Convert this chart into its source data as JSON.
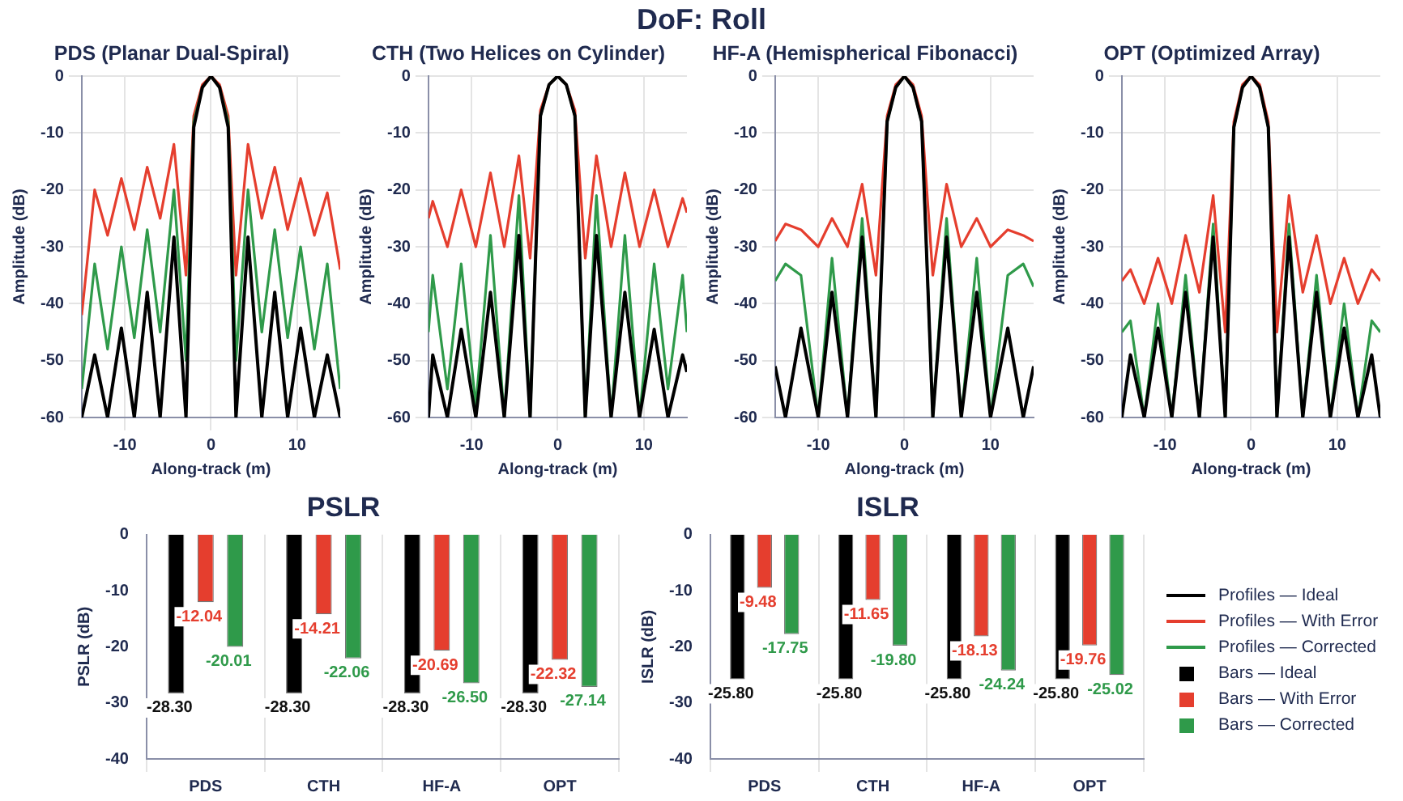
{
  "chart_data": [
    {
      "type": "other",
      "title": "DoF: Roll"
    },
    {
      "type": "line",
      "title": "PDS (Planar Dual-Spiral)",
      "xlabel": "Along-track (m)",
      "ylabel": "Amplitude (dB)",
      "xlim": [
        -15,
        15
      ],
      "xticks": [
        -10,
        0,
        10
      ],
      "ylim": [
        -60,
        0
      ],
      "yticks": [
        -60,
        -50,
        -40,
        -30,
        -20,
        -10,
        0
      ],
      "grid": true,
      "legend": "bottom right",
      "x": [
        -15,
        -13.5,
        -12,
        -10.4,
        -8.9,
        -7.4,
        -5.9,
        -4.3,
        -2.9,
        -2,
        -1,
        0,
        1,
        2,
        2.9,
        4.3,
        5.9,
        7.4,
        8.9,
        10.4,
        12,
        13.5,
        15
      ],
      "series": [
        {
          "name": "Profiles — With Error",
          "color": "#e53e2e",
          "values": [
            -42,
            -20,
            -28,
            -18,
            -27,
            -16,
            -25,
            -12,
            -35,
            -7,
            -1.5,
            0,
            -1.5,
            -7,
            -35,
            -12,
            -25,
            -16,
            -27,
            -18,
            -28,
            -20.5,
            -34
          ]
        },
        {
          "name": "Profiles — Corrected",
          "color": "#2f9a4a",
          "values": [
            -55,
            -33,
            -48,
            -30,
            -46,
            -27,
            -45,
            -20,
            -50,
            -8,
            -2,
            0,
            -2,
            -8,
            -50,
            -20,
            -45,
            -27,
            -46,
            -30,
            -48,
            -33,
            -55
          ]
        },
        {
          "name": "Profiles — Ideal",
          "color": "#000000",
          "values": [
            -60,
            -49,
            -60,
            -44.3,
            -60,
            -38,
            -60,
            -28.3,
            -60,
            -9,
            -2,
            0,
            -2,
            -9,
            -60,
            -28.3,
            -60,
            -38,
            -60,
            -44.3,
            -60,
            -49,
            -60
          ]
        }
      ]
    },
    {
      "type": "line",
      "title": "CTH (Two Helices on Cylinder)",
      "xlabel": "Along-track (m)",
      "ylabel": "Amplitude (dB)",
      "xlim": [
        -15,
        15
      ],
      "xticks": [
        -10,
        0,
        10
      ],
      "ylim": [
        -60,
        0
      ],
      "yticks": [
        -60,
        -50,
        -40,
        -30,
        -20,
        -10,
        0
      ],
      "grid": true,
      "x": [
        -15,
        -14.5,
        -12.8,
        -11.2,
        -9.5,
        -7.8,
        -6.2,
        -4.5,
        -3.2,
        -2,
        -1,
        0,
        1,
        2,
        3.2,
        4.5,
        6.2,
        7.8,
        9.5,
        11.2,
        12.8,
        14.5,
        15
      ],
      "series": [
        {
          "color": "#e53e2e",
          "values": [
            -25,
            -22,
            -30,
            -20,
            -30,
            -17,
            -30,
            -14,
            -32,
            -6,
            -1.5,
            0,
            -1.5,
            -6,
            -32,
            -14,
            -30,
            -17,
            -30,
            -20,
            -30,
            -21.5,
            -24
          ]
        },
        {
          "color": "#2f9a4a",
          "values": [
            -45,
            -35,
            -55,
            -33,
            -58,
            -28,
            -60,
            -21,
            -60,
            -7,
            -1.5,
            0,
            -1.5,
            -7,
            -60,
            -21,
            -60,
            -28,
            -60,
            -33,
            -55,
            -35,
            -45
          ]
        },
        {
          "color": "#000000",
          "values": [
            -60,
            -49,
            -60,
            -44.5,
            -60,
            -38,
            -60,
            -28,
            -60,
            -7,
            -1.5,
            0,
            -1.5,
            -7,
            -60,
            -28,
            -60,
            -38,
            -60,
            -44.5,
            -60,
            -49,
            -52
          ]
        }
      ]
    },
    {
      "type": "line",
      "title": "HF-A (Hemispherical Fibonacci)",
      "xlabel": "Along-track (m)",
      "ylabel": "Amplitude (dB)",
      "xlim": [
        -15,
        15
      ],
      "xticks": [
        -10,
        0,
        10
      ],
      "ylim": [
        -60,
        0
      ],
      "yticks": [
        -60,
        -50,
        -40,
        -30,
        -20,
        -10,
        0
      ],
      "grid": true,
      "x": [
        -15,
        -13.8,
        -12,
        -10,
        -8.4,
        -6.6,
        -4.9,
        -3.3,
        -2,
        -1,
        0,
        1,
        2,
        3.3,
        4.9,
        6.6,
        8.4,
        10,
        12,
        13.8,
        15
      ],
      "series": [
        {
          "color": "#e53e2e",
          "values": [
            -29,
            -26,
            -27,
            -30,
            -25,
            -30,
            -19,
            -35,
            -7,
            -1.5,
            0,
            -1.5,
            -7,
            -35,
            -19,
            -30,
            -25,
            -30,
            -27,
            -28,
            -29
          ]
        },
        {
          "color": "#2f9a4a",
          "values": [
            -36,
            -33,
            -35,
            -60,
            -32,
            -60,
            -25,
            -60,
            -8,
            -2,
            0,
            -2,
            -8,
            -60,
            -25,
            -60,
            -32,
            -60,
            -35,
            -33,
            -37
          ]
        },
        {
          "color": "#000000",
          "values": [
            -51,
            -60,
            -44.3,
            -60,
            -38,
            -60,
            -28.3,
            -60,
            -8,
            -2,
            0,
            -2,
            -8,
            -60,
            -28.3,
            -60,
            -38,
            -60,
            -44.3,
            -60,
            -51
          ]
        }
      ]
    },
    {
      "type": "line",
      "title": "OPT (Optimized Array)",
      "xlabel": "Along-track (m)",
      "ylabel": "Amplitude (dB)",
      "xlim": [
        -15,
        15
      ],
      "xticks": [
        -10,
        0,
        10
      ],
      "ylim": [
        -60,
        0
      ],
      "yticks": [
        -60,
        -50,
        -40,
        -30,
        -20,
        -10,
        0
      ],
      "grid": true,
      "x": [
        -15,
        -14,
        -12.4,
        -10.8,
        -9.2,
        -7.6,
        -6,
        -4.4,
        -3,
        -2,
        -1,
        0,
        1,
        2,
        3,
        4.4,
        6,
        7.6,
        9.2,
        10.8,
        12.4,
        14,
        15
      ],
      "series": [
        {
          "color": "#e53e2e",
          "values": [
            -36,
            -34,
            -40,
            -32,
            -40,
            -28,
            -38,
            -21,
            -45,
            -8,
            -1.5,
            0,
            -1.5,
            -8,
            -45,
            -21,
            -38,
            -28,
            -40,
            -32,
            -40,
            -34,
            -36
          ]
        },
        {
          "color": "#2f9a4a",
          "values": [
            -45,
            -43,
            -60,
            -40,
            -60,
            -35,
            -60,
            -26,
            -60,
            -9,
            -2,
            0,
            -2,
            -9,
            -60,
            -26,
            -60,
            -35,
            -60,
            -40,
            -60,
            -43,
            -45
          ]
        },
        {
          "color": "#000000",
          "values": [
            -60,
            -49,
            -60,
            -44.3,
            -60,
            -38,
            -60,
            -28.3,
            -60,
            -9,
            -2,
            0,
            -2,
            -9,
            -60,
            -28.3,
            -60,
            -38,
            -60,
            -44.3,
            -60,
            -49,
            -60
          ]
        }
      ]
    },
    {
      "type": "bar",
      "title": "PSLR",
      "ylabel": "PSLR (dB)",
      "categories": [
        "PDS",
        "CTH",
        "HF-A",
        "OPT"
      ],
      "ylim": [
        -40,
        0
      ],
      "yticks": [
        -40,
        -30,
        -20,
        -10,
        0
      ],
      "grid": "x",
      "series": [
        {
          "color": "#000000",
          "values": [
            -28.3,
            -28.3,
            -28.3,
            -28.3
          ],
          "value_labels": [
            "-28.30",
            "-28.30",
            "-28.30",
            "-28.30"
          ]
        },
        {
          "color": "#e53e2e",
          "values": [
            -12.04,
            -14.21,
            -20.69,
            -22.32
          ],
          "value_labels": [
            "-12.04",
            "-14.21",
            "-20.69",
            "-22.32"
          ]
        },
        {
          "color": "#2f9a4a",
          "values": [
            -20.01,
            -22.06,
            -26.5,
            -27.14
          ],
          "value_labels": [
            "-20.01",
            "-22.06",
            "-26.50",
            "-27.14"
          ]
        }
      ]
    },
    {
      "type": "bar",
      "title": "ISLR",
      "ylabel": "ISLR (dB)",
      "categories": [
        "PDS",
        "CTH",
        "HF-A",
        "OPT"
      ],
      "ylim": [
        -40,
        0
      ],
      "yticks": [
        -40,
        -30,
        -20,
        -10,
        0
      ],
      "grid": "x",
      "legend": "right",
      "series": [
        {
          "name": "Bars — Ideal",
          "color": "#000000",
          "values": [
            -25.8,
            -25.8,
            -25.8,
            -25.8
          ],
          "value_labels": [
            "-25.80",
            "-25.80",
            "-25.80",
            "-25.80"
          ]
        },
        {
          "name": "Bars — With Error",
          "color": "#e53e2e",
          "values": [
            -9.48,
            -11.65,
            -18.13,
            -19.76
          ],
          "value_labels": [
            "-9.48",
            "-11.65",
            "-18.13",
            "-19.76"
          ]
        },
        {
          "name": "Bars — Corrected",
          "color": "#2f9a4a",
          "values": [
            -17.75,
            -19.8,
            -24.24,
            -25.02
          ],
          "value_labels": [
            "-17.75",
            "-19.80",
            "-24.24",
            "-25.02"
          ]
        }
      ]
    }
  ]
}
